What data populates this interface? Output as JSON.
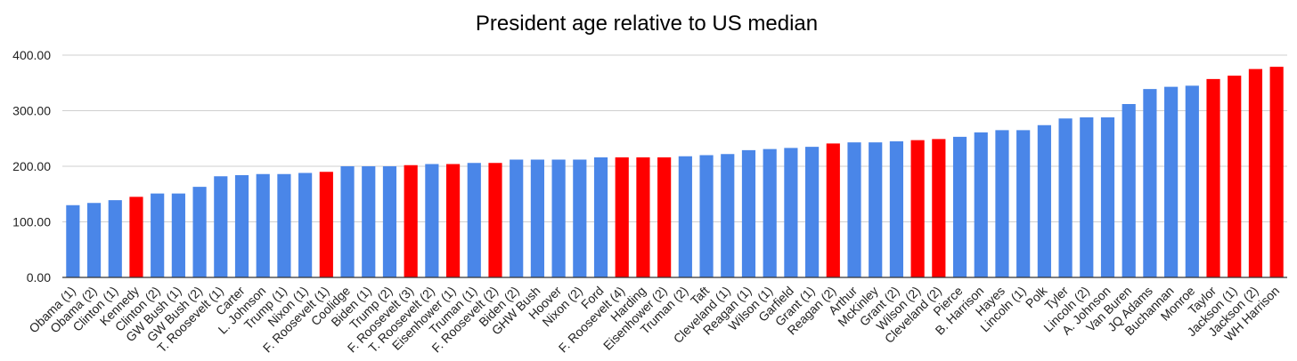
{
  "chart_data": {
    "type": "bar",
    "title": "President age relative to US median",
    "xlabel": "",
    "ylabel": "",
    "ylim": [
      0,
      400
    ],
    "y_ticks": [
      0,
      100,
      200,
      300,
      400
    ],
    "y_tick_labels": [
      "0.00",
      "100.00",
      "200.00",
      "300.00",
      "400.00"
    ],
    "grid": true,
    "legend": "none",
    "colors": {
      "default": "#4a86e8",
      "highlight": "#ff0000",
      "grid": "#cfcfcf",
      "axis": "#333333"
    },
    "categories": [
      "Obama (1)",
      "Obama (2)",
      "Clinton (1)",
      "Kennedy",
      "Clinton (2)",
      "GW Bush (1)",
      "GW Bush (2)",
      "T. Roosevelt (1)",
      "Carter",
      "L. Johnson",
      "Trump (1)",
      "Nixon (1)",
      "F. Roosevelt (1)",
      "Coolidge",
      "Biden (1)",
      "Trump (2)",
      "F. Roosevelt (3)",
      "T. Roosevelt (2)",
      "Eisenhower (1)",
      "Truman (1)",
      "F. Roosevelt (2)",
      "Biden (2)",
      "GHW Bush",
      "Hoover",
      "Nixon (2)",
      "Ford",
      "F. Roosevelt (4)",
      "Harding",
      "Eisenhower (2)",
      "Truman (2)",
      "Taft",
      "Cleveland (1)",
      "Reagan (1)",
      "Wilson (1)",
      "Garfield",
      "Grant (1)",
      "Reagan (2)",
      "Arthur",
      "McKinley",
      "Grant (2)",
      "Wilson (2)",
      "Cleveland (2)",
      "Pierce",
      "B. Harrison",
      "Hayes",
      "Lincoln (1)",
      "Polk",
      "Tyler",
      "Lincoln (2)",
      "A. Johnson",
      "Van Buren",
      "JQ Adams",
      "Buchannan",
      "Monroe",
      "Taylor",
      "Jackson (1)",
      "Jackson (2)",
      "WH Harrison"
    ],
    "values": [
      130,
      134,
      139,
      145,
      151,
      151,
      163,
      182,
      184,
      186,
      186,
      188,
      190,
      200,
      200,
      200,
      202,
      204,
      204,
      206,
      206,
      212,
      212,
      212,
      212,
      216,
      216,
      216,
      216,
      218,
      220,
      222,
      229,
      231,
      233,
      235,
      241,
      243,
      243,
      245,
      247,
      249,
      253,
      261,
      265,
      265,
      274,
      286,
      288,
      288,
      312,
      339,
      343,
      345,
      357,
      363,
      375,
      379
    ],
    "highlighted": [
      false,
      false,
      false,
      true,
      false,
      false,
      false,
      false,
      false,
      false,
      false,
      false,
      true,
      false,
      false,
      false,
      true,
      false,
      true,
      false,
      true,
      false,
      false,
      false,
      false,
      false,
      true,
      true,
      true,
      false,
      false,
      false,
      false,
      false,
      false,
      false,
      true,
      false,
      false,
      false,
      true,
      true,
      false,
      false,
      false,
      false,
      false,
      false,
      false,
      false,
      false,
      false,
      false,
      false,
      true,
      true,
      true,
      true
    ]
  }
}
